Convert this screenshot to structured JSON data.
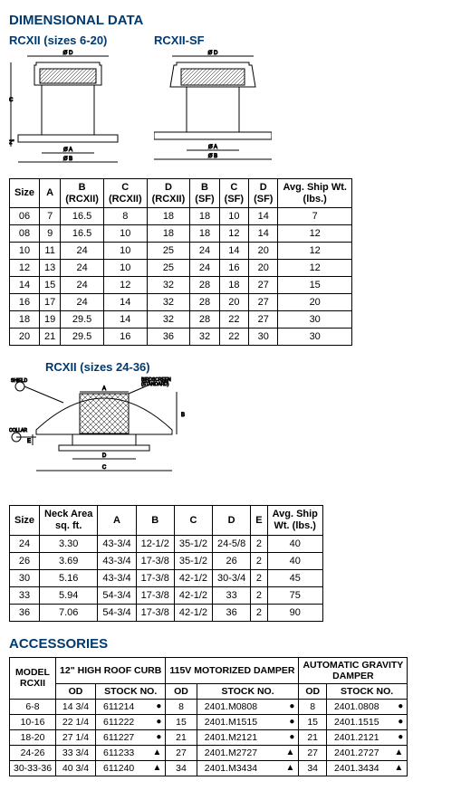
{
  "section_title": "DIMENSIONAL DATA",
  "drawing1_label": "RCXII (sizes 6-20)",
  "drawing2_label": "RCXII-SF",
  "table1": {
    "headers": [
      "Size",
      "A",
      "B (RCXII)",
      "C (RCXII)",
      "D (RCXII)",
      "B (SF)",
      "C (SF)",
      "D (SF)",
      "Avg. Ship Wt. (lbs.)"
    ],
    "rows": [
      [
        "06",
        "7",
        "16.5",
        "8",
        "18",
        "18",
        "10",
        "14",
        "7"
      ],
      [
        "08",
        "9",
        "16.5",
        "10",
        "18",
        "18",
        "12",
        "14",
        "12"
      ],
      [
        "10",
        "11",
        "24",
        "10",
        "25",
        "24",
        "14",
        "20",
        "12"
      ],
      [
        "12",
        "13",
        "24",
        "10",
        "25",
        "24",
        "16",
        "20",
        "12"
      ],
      [
        "14",
        "15",
        "24",
        "12",
        "32",
        "28",
        "18",
        "27",
        "15"
      ],
      [
        "16",
        "17",
        "24",
        "14",
        "32",
        "28",
        "20",
        "27",
        "20"
      ],
      [
        "18",
        "19",
        "29.5",
        "14",
        "32",
        "28",
        "22",
        "27",
        "30"
      ],
      [
        "20",
        "21",
        "29.5",
        "16",
        "36",
        "32",
        "22",
        "30",
        "30"
      ]
    ]
  },
  "drawing3_label": "RCXII (sizes 24-36)",
  "drawing3_note1": "SHIELD",
  "drawing3_note2": "BIRDSCREEN (STANDARD)",
  "drawing3_note3": "COLLAR",
  "table2": {
    "headers": [
      "Size",
      "Neck Area sq. ft.",
      "A",
      "B",
      "C",
      "D",
      "E",
      "Avg. Ship Wt. (lbs.)"
    ],
    "rows": [
      [
        "24",
        "3.30",
        "43-3/4",
        "12-1/2",
        "35-1/2",
        "24-5/8",
        "2",
        "40"
      ],
      [
        "26",
        "3.69",
        "43-3/4",
        "17-3/8",
        "35-1/2",
        "26",
        "2",
        "40"
      ],
      [
        "30",
        "5.16",
        "43-3/4",
        "17-3/8",
        "42-1/2",
        "30-3/4",
        "2",
        "45"
      ],
      [
        "33",
        "5.94",
        "54-3/4",
        "17-3/8",
        "42-1/2",
        "33",
        "2",
        "75"
      ],
      [
        "36",
        "7.06",
        "54-3/4",
        "17-3/8",
        "42-1/2",
        "36",
        "2",
        "90"
      ]
    ]
  },
  "accessories_title": "ACCESSORIES",
  "acc": {
    "group_headers": [
      "MODEL RCXII",
      "12\" HIGH ROOF CURB",
      "115V MOTORIZED DAMPER",
      "AUTOMATIC GRAVITY DAMPER"
    ],
    "sub_headers": [
      "OD",
      "STOCK NO.",
      "OD",
      "STOCK NO.",
      "OD",
      "STOCK NO."
    ],
    "rows": [
      [
        "6-8",
        "14 3/4",
        "611214",
        "●",
        "8",
        "2401.M0808",
        "●",
        "8",
        "2401.0808",
        "●"
      ],
      [
        "10-16",
        "22 1/4",
        "611222",
        "●",
        "15",
        "2401.M1515",
        "●",
        "15",
        "2401.1515",
        "●"
      ],
      [
        "18-20",
        "27 1/4",
        "611227",
        "●",
        "21",
        "2401.M2121",
        "●",
        "21",
        "2401.2121",
        "●"
      ],
      [
        "24-26",
        "33 3/4",
        "611233",
        "▲",
        "27",
        "2401.M2727",
        "▲",
        "27",
        "2401.2727",
        "▲"
      ],
      [
        "30-33-36",
        "40 3/4",
        "611240",
        "▲",
        "34",
        "2401.M3434",
        "▲",
        "34",
        "2401.3434",
        "▲"
      ]
    ]
  },
  "colors": {
    "heading": "#003a6f",
    "border": "#000000",
    "text": "#000000"
  }
}
